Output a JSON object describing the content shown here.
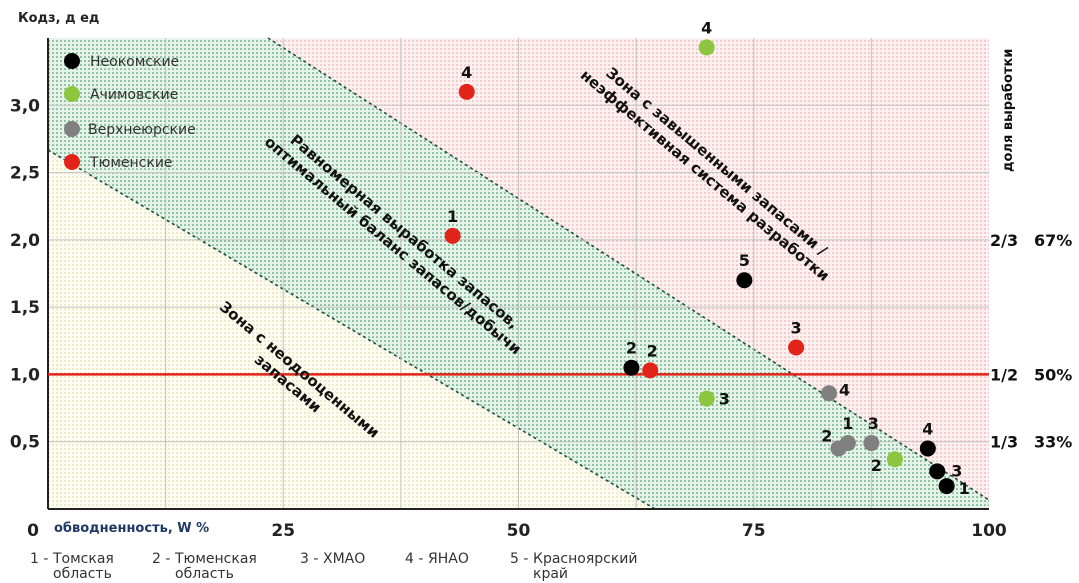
{
  "chart_data": {
    "type": "scatter",
    "ylabel": "Кодз, д ед",
    "xlabel": "обводненность, W %",
    "xlim": [
      0,
      100
    ],
    "ylim": [
      0,
      3.5
    ],
    "x_ticks": [
      {
        "v": 0,
        "label": "0"
      },
      {
        "v": 25,
        "label": "25"
      },
      {
        "v": 50,
        "label": "50"
      },
      {
        "v": 75,
        "label": "75"
      },
      {
        "v": 100,
        "label": "100"
      }
    ],
    "y_ticks": [
      {
        "v": 0.5,
        "label": "0,5"
      },
      {
        "v": 1.0,
        "label": "1,0"
      },
      {
        "v": 1.5,
        "label": "1,5"
      },
      {
        "v": 2.0,
        "label": "2,0"
      },
      {
        "v": 2.5,
        "label": "2,5"
      },
      {
        "v": 3.0,
        "label": "3,0"
      }
    ],
    "reference_line": {
      "y": 1.0,
      "color": "#e2231a"
    },
    "legend": [
      {
        "name": "Неокомские",
        "color": "#000000"
      },
      {
        "name": "Ачимовские",
        "color": "#8cc63f"
      },
      {
        "name": "Верхнеюрские",
        "color": "#808080"
      },
      {
        "name": "Тюменские",
        "color": "#e2231a"
      }
    ],
    "series": [
      {
        "name": "Неокомские",
        "color": "#000000",
        "points": [
          {
            "x": 62,
            "y": 1.05,
            "label": "2"
          },
          {
            "x": 74,
            "y": 1.7,
            "label": "5"
          },
          {
            "x": 93.5,
            "y": 0.45,
            "label": "4"
          },
          {
            "x": 94.5,
            "y": 0.28,
            "label": "3"
          },
          {
            "x": 95.5,
            "y": 0.17,
            "label": "1"
          }
        ]
      },
      {
        "name": "Ачимовские",
        "color": "#8cc63f",
        "points": [
          {
            "x": 70,
            "y": 3.43,
            "label": "4"
          },
          {
            "x": 70,
            "y": 0.82,
            "label": "3"
          },
          {
            "x": 90,
            "y": 0.37,
            "label": "2"
          }
        ]
      },
      {
        "name": "Верхнеюрские",
        "color": "#808080",
        "points": [
          {
            "x": 83,
            "y": 0.86,
            "label": "4"
          },
          {
            "x": 84,
            "y": 0.45,
            "label": "2"
          },
          {
            "x": 85,
            "y": 0.49,
            "label": "1"
          },
          {
            "x": 87.5,
            "y": 0.49,
            "label": "3"
          }
        ]
      },
      {
        "name": "Тюменские",
        "color": "#e2231a",
        "points": [
          {
            "x": 43,
            "y": 2.03,
            "label": "1"
          },
          {
            "x": 44.5,
            "y": 3.1,
            "label": "4"
          },
          {
            "x": 64,
            "y": 1.03,
            "label": "2"
          },
          {
            "x": 79.5,
            "y": 1.2,
            "label": "3"
          }
        ]
      }
    ],
    "zones": [
      {
        "text": [
          "Зона с неодооценными",
          "запасами"
        ]
      },
      {
        "text": [
          "Равномерная выработка запасов,",
          "оптимальный баланс запасов/добычи"
        ]
      },
      {
        "text": [
          "Зона с завышенными запасами /",
          "неэффективная система разработки"
        ]
      }
    ],
    "right_axis": {
      "title": "доля выработки",
      "labels": [
        {
          "y": 2.0,
          "frac": "2/3",
          "pct": "67%"
        },
        {
          "y": 1.0,
          "frac": "1/2",
          "pct": "50%"
        },
        {
          "y": 0.5,
          "frac": "1/3",
          "pct": "33%"
        }
      ]
    },
    "footnote": [
      {
        "num": "1 -",
        "lines": [
          "Томская",
          "область"
        ]
      },
      {
        "num": "2 -",
        "lines": [
          "Тюменская",
          "область"
        ]
      },
      {
        "num": "3 -",
        "lines": [
          "ХМАО"
        ]
      },
      {
        "num": "4 -",
        "lines": [
          "ЯНАО"
        ]
      },
      {
        "num": "5 -",
        "lines": [
          "Красноярский",
          "край"
        ]
      }
    ]
  }
}
